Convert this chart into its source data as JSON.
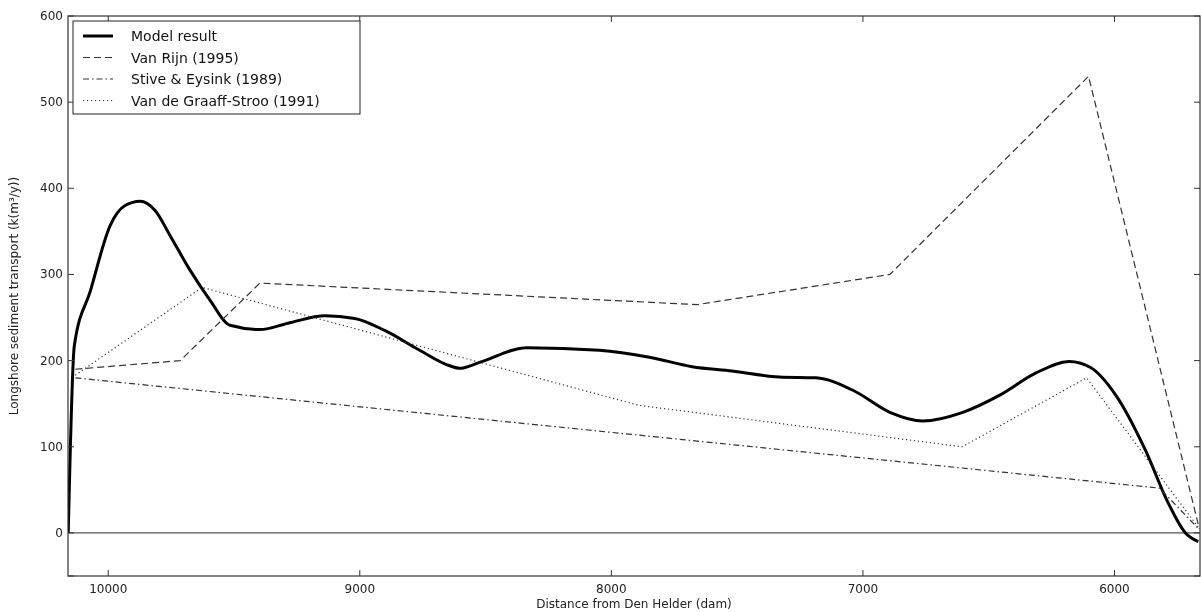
{
  "chart_data": {
    "type": "line",
    "xlabel": "Distance from Den Helder (dam)",
    "ylabel": "Longshore sediment transport (k(m³/y))",
    "xlim": [
      10160,
      5660
    ],
    "ylim": [
      -50,
      600
    ],
    "xticks": [
      10000,
      9000,
      8000,
      7000,
      6000
    ],
    "yticks": [
      {
        "value": -50,
        "label": null
      },
      0,
      100,
      200,
      300,
      400,
      500,
      600
    ],
    "grid": false,
    "legend": "top left",
    "ref_lines": [
      {
        "axis": "y",
        "value": 0,
        "color": "#555555",
        "line_style": "solid"
      }
    ],
    "series": [
      {
        "name": "Model result",
        "color": "#000000",
        "line_style": "solid",
        "x": [
          10159,
          10135,
          10071,
          9992,
          9933,
          9873,
          9813,
          9754,
          9675,
          9595,
          9516,
          9397,
          9278,
          9139,
          9020,
          8901,
          8762,
          8643,
          8603,
          8524,
          8337,
          8048,
          7849,
          7679,
          7520,
          7333,
          7187,
          7036,
          6893,
          6762,
          6603,
          6456,
          6310,
          6180,
          6095,
          5995,
          5877,
          5790,
          5718,
          5667
        ],
        "values": [
          0,
          217,
          281,
          357,
          380,
          385,
          374,
          345,
          305,
          270,
          241,
          236,
          244,
          252,
          249,
          235,
          212,
          194,
          191,
          198,
          215,
          212,
          204,
          193,
          188,
          181,
          180,
          165,
          140,
          130,
          140,
          160,
          186,
          199,
          192,
          160,
          96,
          37,
          0,
          -10
        ]
      },
      {
        "name": "Van Rijn (1995)",
        "color": "#333333",
        "line_style": "dashed",
        "x": [
          10131,
          9714,
          9397,
          7659,
          6893,
          6103,
          5663
        ],
        "values": [
          190,
          200,
          290,
          265,
          300,
          530,
          5
        ]
      },
      {
        "name": "Stive & Eysink (1989)",
        "color": "#333333",
        "line_style": "dashdot",
        "x": [
          10131,
          5821,
          5663
        ],
        "values": [
          180,
          52,
          4
        ]
      },
      {
        "name": "Van de Graaff-Stroo (1991)",
        "color": "#333333",
        "line_style": "dotted",
        "x": [
          10131,
          9627,
          7889,
          6605,
          6111,
          5663
        ],
        "values": [
          183,
          285,
          148,
          100,
          180,
          5
        ]
      }
    ]
  }
}
